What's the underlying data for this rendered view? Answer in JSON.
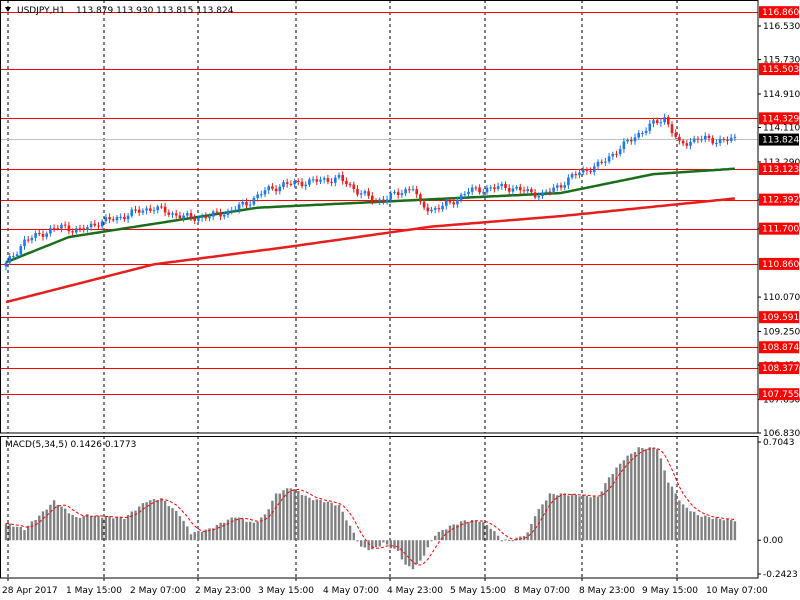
{
  "header": {
    "symbol": "USDJPY,H1",
    "ohlc": "113.879 113.930 113.815 113.824",
    "menu_arrow": "triangle-down-icon"
  },
  "colors": {
    "background": "#ffffff",
    "level_line": "#ff0000",
    "bull_candle": "#1e78e6",
    "bear_candle": "#e61e1e",
    "ma_fast": "#1a6e1a",
    "ma_slow": "#e61e1e",
    "macd_hist": "#808080",
    "macd_signal": "#ff0000",
    "grid": "#000000",
    "current_price_bg": "#000000"
  },
  "chart_data": [
    {
      "type": "candlestick",
      "title": "USDJPY,H1",
      "ylim": [
        106.83,
        117.15
      ],
      "y_ticks": [
        116.53,
        115.73,
        114.91,
        114.11,
        113.29,
        112.39,
        111.7,
        110.07,
        109.25,
        108.45,
        107.63,
        106.83
      ],
      "x_tick_labels": [
        "28 Apr 2017",
        "1 May 15:00",
        "2 May 07:00",
        "2 May 23:00",
        "3 May 15:00",
        "4 May 07:00",
        "4 May 23:00",
        "5 May 15:00",
        "8 May 07:00",
        "8 May 23:00",
        "9 May 15:00",
        "10 May 07:00"
      ],
      "grid": true,
      "horizontal_levels": [
        {
          "value": 116.86,
          "label": "116.860"
        },
        {
          "value": 115.503,
          "label": "115.503"
        },
        {
          "value": 114.329,
          "label": "114.329"
        },
        {
          "value": 113.123,
          "label": "113.123"
        },
        {
          "value": 112.392,
          "label": "112.392"
        },
        {
          "value": 111.7,
          "label": "111.700"
        },
        {
          "value": 110.86,
          "label": "110.860"
        },
        {
          "value": 109.591,
          "label": "109.591"
        },
        {
          "value": 108.874,
          "label": "108.874"
        },
        {
          "value": 108.377,
          "label": "108.377"
        },
        {
          "value": 107.755,
          "label": "107.755"
        }
      ],
      "current_price": {
        "value": 113.824,
        "label": "113.824"
      },
      "close_path": [
        [
          0,
          110.85
        ],
        [
          5,
          111.4
        ],
        [
          10,
          111.6
        ],
        [
          15,
          111.75
        ],
        [
          20,
          111.65
        ],
        [
          25,
          111.85
        ],
        [
          30,
          111.95
        ],
        [
          35,
          112.1
        ],
        [
          40,
          112.2
        ],
        [
          45,
          112.05
        ],
        [
          50,
          111.95
        ],
        [
          55,
          112.0
        ],
        [
          60,
          112.1
        ],
        [
          65,
          112.3
        ],
        [
          70,
          112.6
        ],
        [
          75,
          112.75
        ],
        [
          80,
          112.8
        ],
        [
          85,
          112.85
        ],
        [
          90,
          112.9
        ],
        [
          95,
          112.6
        ],
        [
          100,
          112.35
        ],
        [
          105,
          112.5
        ],
        [
          110,
          112.7
        ],
        [
          112,
          112.25
        ],
        [
          115,
          112.15
        ],
        [
          120,
          112.3
        ],
        [
          125,
          112.6
        ],
        [
          130,
          112.65
        ],
        [
          135,
          112.7
        ],
        [
          140,
          112.6
        ],
        [
          145,
          112.5
        ],
        [
          150,
          112.75
        ],
        [
          155,
          113.05
        ],
        [
          160,
          113.2
        ],
        [
          165,
          113.55
        ],
        [
          170,
          113.9
        ],
        [
          175,
          114.2
        ],
        [
          178,
          114.35
        ],
        [
          182,
          113.7
        ],
        [
          187,
          113.85
        ],
        [
          192,
          113.8
        ],
        [
          197,
          113.824
        ]
      ],
      "series": [
        {
          "name": "ma_fast",
          "values": [
            [
              0,
              110.9
            ],
            [
              17,
              111.5
            ],
            [
              68,
              112.2
            ],
            [
              115,
              112.4
            ],
            [
              150,
              112.55
            ],
            [
              175,
              113.0
            ],
            [
              197,
              113.13
            ]
          ]
        },
        {
          "name": "ma_slow",
          "values": [
            [
              0,
              109.95
            ],
            [
              40,
              110.85
            ],
            [
              75,
              111.25
            ],
            [
              115,
              111.75
            ],
            [
              150,
              112.0
            ],
            [
              197,
              112.42
            ]
          ]
        }
      ]
    },
    {
      "type": "histogram",
      "title": "MACD(5,34,5) 0.1426 0.1773",
      "indicator": "MACD(5,34,5)",
      "values_text": "0.1426 0.1773",
      "ylim": [
        -0.2423,
        0.7043
      ],
      "y_ticks": [
        0.7043,
        0.0,
        -0.2423
      ],
      "y_tick_labels": [
        "0.7043",
        "0.00",
        "-0.2423"
      ],
      "last_histogram": 0.1426,
      "last_signal": 0.1773,
      "histogram_path": [
        [
          0,
          0.12
        ],
        [
          5,
          0.08
        ],
        [
          10,
          0.2
        ],
        [
          13,
          0.28
        ],
        [
          16,
          0.22
        ],
        [
          19,
          0.16
        ],
        [
          22,
          0.18
        ],
        [
          25,
          0.17
        ],
        [
          32,
          0.16
        ],
        [
          38,
          0.28
        ],
        [
          42,
          0.3
        ],
        [
          47,
          0.18
        ],
        [
          50,
          0.05
        ],
        [
          55,
          0.08
        ],
        [
          58,
          0.12
        ],
        [
          62,
          0.17
        ],
        [
          67,
          0.12
        ],
        [
          70,
          0.18
        ],
        [
          73,
          0.33
        ],
        [
          77,
          0.38
        ],
        [
          82,
          0.3
        ],
        [
          86,
          0.28
        ],
        [
          90,
          0.25
        ],
        [
          93,
          0.1
        ],
        [
          96,
          -0.05
        ],
        [
          99,
          -0.07
        ],
        [
          102,
          -0.02
        ],
        [
          106,
          -0.08
        ],
        [
          108,
          -0.18
        ],
        [
          110,
          -0.2
        ],
        [
          112,
          -0.15
        ],
        [
          116,
          0.04
        ],
        [
          120,
          0.1
        ],
        [
          124,
          0.14
        ],
        [
          128,
          0.14
        ],
        [
          131,
          0.09
        ],
        [
          134,
          0.0
        ],
        [
          137,
          0.0
        ],
        [
          141,
          0.05
        ],
        [
          143,
          0.18
        ],
        [
          147,
          0.33
        ],
        [
          151,
          0.33
        ],
        [
          156,
          0.32
        ],
        [
          160,
          0.31
        ],
        [
          163,
          0.45
        ],
        [
          167,
          0.58
        ],
        [
          171,
          0.66
        ],
        [
          176,
          0.66
        ],
        [
          179,
          0.42
        ],
        [
          183,
          0.25
        ],
        [
          187,
          0.18
        ],
        [
          191,
          0.16
        ],
        [
          194,
          0.15
        ],
        [
          197,
          0.1426
        ]
      ]
    }
  ]
}
